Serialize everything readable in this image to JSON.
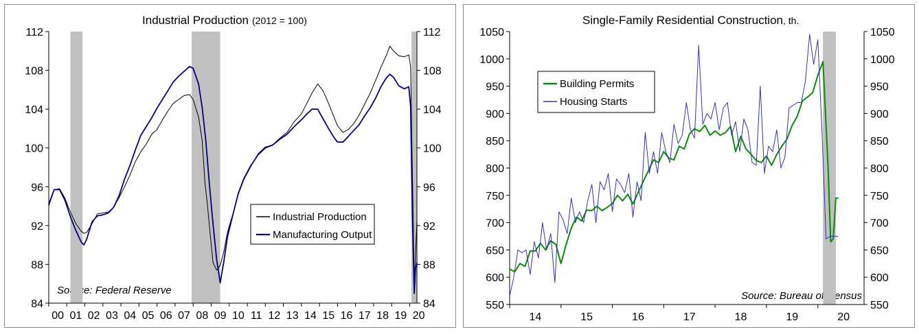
{
  "chart_data": [
    {
      "type": "line",
      "title": "Industrial Production",
      "title_note": "(2012 = 100)",
      "source": "Source: Federal Reserve",
      "xlim": [
        2000.0,
        2020.4
      ],
      "ylim": [
        84,
        112
      ],
      "yticks": [
        84,
        88,
        92,
        96,
        100,
        104,
        108,
        112
      ],
      "xtick_labels": [
        "00",
        "01",
        "02",
        "03",
        "04",
        "05",
        "06",
        "07",
        "08",
        "09",
        "10",
        "11",
        "12",
        "13",
        "14",
        "15",
        "16",
        "17",
        "18",
        "19",
        "20"
      ],
      "legend_position": "center-right",
      "recessions": [
        [
          2001.2,
          2001.87
        ],
        [
          2007.92,
          2009.5
        ],
        [
          2020.1,
          2020.42
        ]
      ],
      "colors": {
        "recession": "#c0c0c0",
        "axis": "#000000"
      },
      "series": [
        {
          "name": "Industrial Production",
          "color": "#000000",
          "x": [
            2000.0,
            2000.3,
            2000.6,
            2000.9,
            2001.2,
            2001.5,
            2001.8,
            2001.95,
            2002.1,
            2002.4,
            2002.7,
            2003.0,
            2003.3,
            2003.6,
            2003.9,
            2004.2,
            2004.5,
            2004.8,
            2005.1,
            2005.4,
            2005.7,
            2006.0,
            2006.3,
            2006.6,
            2006.9,
            2007.2,
            2007.5,
            2007.8,
            2008.0,
            2008.3,
            2008.5,
            2008.65,
            2008.8,
            2008.95,
            2009.1,
            2009.3,
            2009.5,
            2009.7,
            2009.9,
            2010.2,
            2010.5,
            2010.8,
            2011.2,
            2011.6,
            2012.0,
            2012.4,
            2012.8,
            2013.2,
            2013.6,
            2014.0,
            2014.3,
            2014.6,
            2014.9,
            2015.2,
            2015.5,
            2015.8,
            2016.0,
            2016.3,
            2016.6,
            2016.9,
            2017.2,
            2017.5,
            2017.8,
            2018.1,
            2018.4,
            2018.7,
            2018.9,
            2019.1,
            2019.4,
            2019.7,
            2019.95,
            2020.05,
            2020.15,
            2020.25,
            2020.32,
            2020.4
          ],
          "y": [
            94.0,
            95.7,
            95.8,
            94.8,
            93.4,
            92.2,
            91.4,
            91.2,
            91.3,
            92.2,
            93.2,
            93.3,
            93.4,
            93.9,
            94.9,
            96.0,
            97.2,
            98.6,
            99.6,
            100.4,
            101.4,
            101.9,
            102.9,
            103.8,
            104.6,
            105.0,
            105.4,
            105.5,
            105.0,
            103.2,
            100.8,
            96.5,
            94.0,
            91.0,
            88.2,
            87.4,
            87.9,
            89.3,
            91.3,
            93.2,
            95.2,
            96.7,
            98.1,
            99.4,
            100.1,
            100.3,
            101.0,
            101.6,
            102.7,
            103.5,
            104.6,
            105.7,
            106.6,
            105.9,
            104.6,
            103.2,
            102.3,
            101.6,
            101.9,
            102.5,
            103.4,
            104.5,
            105.6,
            106.9,
            108.3,
            109.5,
            110.5,
            110.0,
            109.5,
            109.4,
            109.6,
            108.4,
            97.5,
            86.2,
            89.0,
            92.5
          ]
        },
        {
          "name": "Manufacturing Output",
          "color": "#000080",
          "x": [
            2000.0,
            2000.3,
            2000.6,
            2000.9,
            2001.2,
            2001.5,
            2001.8,
            2001.95,
            2002.1,
            2002.4,
            2002.7,
            2003.0,
            2003.3,
            2003.6,
            2003.9,
            2004.2,
            2004.5,
            2004.8,
            2005.1,
            2005.4,
            2005.7,
            2006.0,
            2006.3,
            2006.6,
            2006.9,
            2007.2,
            2007.5,
            2007.8,
            2008.0,
            2008.3,
            2008.5,
            2008.7,
            2008.9,
            2009.1,
            2009.3,
            2009.5,
            2009.7,
            2009.9,
            2010.2,
            2010.5,
            2010.8,
            2011.2,
            2011.6,
            2012.0,
            2012.4,
            2012.8,
            2013.2,
            2013.6,
            2014.0,
            2014.3,
            2014.6,
            2014.9,
            2015.2,
            2015.5,
            2015.8,
            2016.0,
            2016.3,
            2016.6,
            2016.9,
            2017.2,
            2017.5,
            2017.8,
            2018.1,
            2018.4,
            2018.7,
            2018.9,
            2019.1,
            2019.4,
            2019.7,
            2019.95,
            2020.05,
            2020.15,
            2020.25,
            2020.32,
            2020.4
          ],
          "y": [
            94.2,
            95.7,
            95.7,
            94.6,
            92.9,
            91.5,
            90.3,
            90.0,
            90.6,
            92.4,
            93.0,
            93.1,
            93.3,
            93.9,
            95.1,
            96.8,
            98.2,
            99.8,
            101.3,
            102.2,
            103.1,
            104.1,
            105.0,
            105.9,
            106.8,
            107.4,
            107.9,
            108.4,
            108.2,
            106.6,
            104.2,
            100.8,
            96.3,
            92.2,
            88.5,
            86.1,
            88.3,
            90.8,
            93.1,
            95.3,
            96.8,
            98.2,
            99.3,
            100.0,
            100.3,
            100.9,
            101.4,
            102.2,
            102.9,
            103.5,
            104.0,
            104.0,
            103.0,
            102.0,
            101.1,
            100.6,
            100.6,
            101.2,
            101.8,
            102.4,
            103.3,
            104.1,
            105.1,
            106.3,
            107.2,
            107.6,
            107.3,
            106.4,
            106.1,
            106.3,
            104.3,
            93.0,
            85.0,
            87.5,
            88.2
          ]
        }
      ]
    },
    {
      "type": "line",
      "title": "Single-Family Residential Construction",
      "title_note": ", th.",
      "source": "Source: Bureau of Census",
      "xlim": [
        2013.5,
        2020.4
      ],
      "ylim": [
        550,
        1050
      ],
      "yticks": [
        550,
        600,
        650,
        700,
        750,
        800,
        850,
        900,
        950,
        1000,
        1050
      ],
      "xtick_labels": [
        "14",
        "15",
        "16",
        "17",
        "18",
        "19",
        "20"
      ],
      "xtick_values": [
        2014,
        2015,
        2016,
        2017,
        2018,
        2019,
        2020
      ],
      "legend_position": "top-left",
      "recessions": [
        [
          2019.6,
          2019.85
        ]
      ],
      "colors": {
        "recession": "#c0c0c0",
        "axis": "#000000"
      },
      "series": [
        {
          "name": "Building Permits",
          "color": "#0a8a0a",
          "x": [
            2013.5,
            2013.6,
            2013.7,
            2013.8,
            2013.9,
            2014.0,
            2014.1,
            2014.2,
            2014.3,
            2014.4,
            2014.5,
            2014.6,
            2014.7,
            2014.8,
            2014.9,
            2015.0,
            2015.1,
            2015.2,
            2015.3,
            2015.4,
            2015.5,
            2015.6,
            2015.7,
            2015.8,
            2015.9,
            2016.0,
            2016.1,
            2016.2,
            2016.3,
            2016.4,
            2016.5,
            2016.6,
            2016.7,
            2016.8,
            2016.9,
            2017.0,
            2017.1,
            2017.2,
            2017.3,
            2017.4,
            2017.5,
            2017.6,
            2017.7,
            2017.8,
            2017.9,
            2018.0,
            2018.1,
            2018.2,
            2018.3,
            2018.4,
            2018.5,
            2018.6,
            2018.7,
            2018.8,
            2018.9,
            2019.0,
            2019.1,
            2019.2,
            2019.3,
            2019.4,
            2019.5,
            2019.6,
            2019.7,
            2019.75,
            2019.8,
            2019.85,
            2019.9
          ],
          "y": [
            615,
            610,
            625,
            620,
            648,
            648,
            662,
            650,
            667,
            660,
            625,
            660,
            690,
            710,
            703,
            723,
            722,
            730,
            722,
            728,
            735,
            750,
            740,
            752,
            734,
            755,
            775,
            795,
            815,
            810,
            830,
            818,
            815,
            840,
            835,
            862,
            872,
            867,
            878,
            860,
            868,
            860,
            865,
            876,
            830,
            858,
            835,
            825,
            814,
            810,
            822,
            805,
            825,
            840,
            853,
            878,
            895,
            923,
            930,
            938,
            970,
            995,
            800,
            665,
            670,
            745,
            745
          ]
        },
        {
          "name": "Housing Starts",
          "color": "#3333aa",
          "x": [
            2013.5,
            2013.58,
            2013.66,
            2013.74,
            2013.82,
            2013.9,
            2013.98,
            2014.06,
            2014.14,
            2014.22,
            2014.3,
            2014.38,
            2014.46,
            2014.54,
            2014.62,
            2014.7,
            2014.78,
            2014.86,
            2014.94,
            2015.02,
            2015.1,
            2015.18,
            2015.26,
            2015.34,
            2015.42,
            2015.5,
            2015.58,
            2015.66,
            2015.74,
            2015.82,
            2015.9,
            2015.98,
            2016.06,
            2016.14,
            2016.22,
            2016.3,
            2016.38,
            2016.46,
            2016.54,
            2016.62,
            2016.7,
            2016.78,
            2016.86,
            2016.94,
            2017.02,
            2017.1,
            2017.18,
            2017.26,
            2017.34,
            2017.42,
            2017.5,
            2017.58,
            2017.66,
            2017.74,
            2017.82,
            2017.9,
            2017.98,
            2018.06,
            2018.14,
            2018.22,
            2018.3,
            2018.38,
            2018.46,
            2018.54,
            2018.62,
            2018.7,
            2018.78,
            2018.86,
            2018.94,
            2019.02,
            2019.1,
            2019.18,
            2019.26,
            2019.34,
            2019.42,
            2019.5,
            2019.58,
            2019.66,
            2019.74,
            2019.82,
            2019.9
          ],
          "y": [
            565,
            600,
            650,
            645,
            650,
            605,
            665,
            635,
            700,
            650,
            680,
            590,
            720,
            705,
            680,
            745,
            700,
            720,
            700,
            740,
            770,
            700,
            775,
            760,
            790,
            720,
            780,
            770,
            755,
            790,
            710,
            775,
            740,
            865,
            790,
            830,
            790,
            865,
            830,
            810,
            880,
            845,
            860,
            920,
            870,
            855,
            1025,
            880,
            900,
            890,
            920,
            870,
            910,
            920,
            860,
            885,
            830,
            890,
            870,
            810,
            805,
            950,
            790,
            840,
            830,
            870,
            800,
            820,
            910,
            915,
            920,
            920,
            960,
            1045,
            990,
            1035,
            870,
            670,
            675,
            675,
            675
          ]
        }
      ]
    }
  ]
}
